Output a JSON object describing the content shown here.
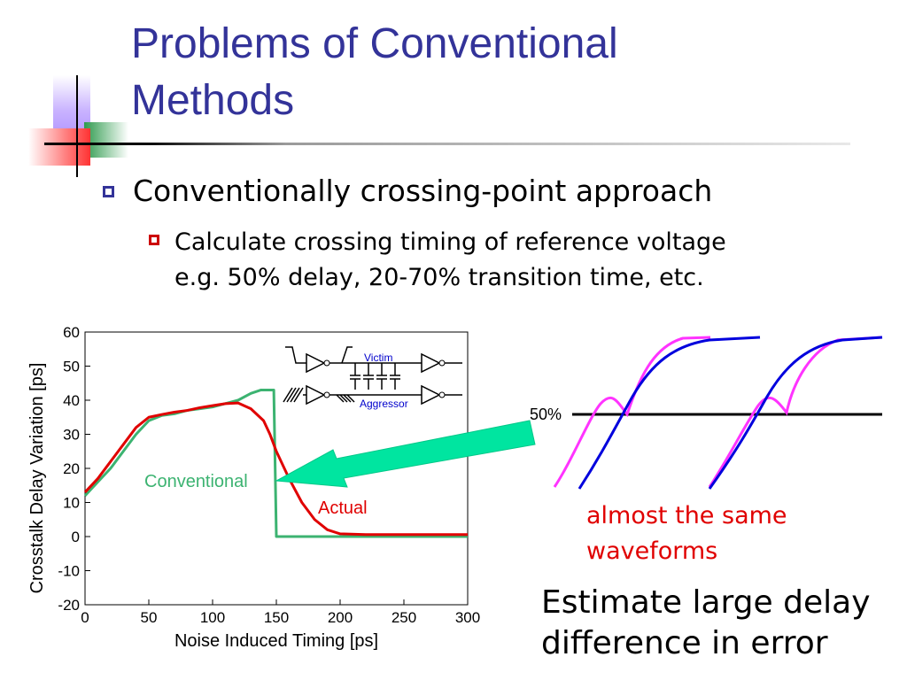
{
  "slide": {
    "title_line1": "Problems of Conventional",
    "title_line2": "Methods",
    "bullet": "Conventionally crossing-point approach",
    "sub_bullet_line1": "Calculate crossing timing of reference voltage",
    "sub_bullet_line2": "e.g. 50% delay, 20-70% transition time, etc."
  },
  "inset_circuit": {
    "victim_label": "Victim",
    "aggressor_label": "Aggressor"
  },
  "waveform_panel": {
    "reference_label": "50%",
    "note_line1": "almost the same",
    "note_line2": "waveforms"
  },
  "conclusion": {
    "line1": "Estimate large delay",
    "line2": "difference in error"
  },
  "colors": {
    "title": "#333399",
    "conventional": "#3cb371",
    "actual": "#e00000",
    "arrow": "#00e0a0",
    "magenta_wave": "#ff33ff",
    "blue_wave": "#0000dd"
  },
  "chart_data": {
    "type": "line",
    "xlabel": "Noise Induced Timing [ps]",
    "ylabel": "Crosstalk Delay Variation [ps]",
    "xlim": [
      0,
      300
    ],
    "ylim": [
      -20,
      60
    ],
    "xticks": [
      0,
      50,
      100,
      150,
      200,
      250,
      300
    ],
    "yticks": [
      60,
      50,
      40,
      30,
      20,
      10,
      0,
      -10,
      -20
    ],
    "series": [
      {
        "name": "Conventional",
        "color": "#3cb371",
        "x": [
          0,
          10,
          20,
          30,
          40,
          50,
          60,
          70,
          80,
          90,
          100,
          110,
          120,
          130,
          138,
          148,
          150,
          300
        ],
        "y": [
          12,
          16,
          20,
          25,
          30,
          34,
          35.5,
          36,
          37,
          37.5,
          38,
          39,
          40,
          42,
          43,
          43,
          0,
          0
        ]
      },
      {
        "name": "Actual",
        "color": "#e00000",
        "x": [
          0,
          10,
          20,
          30,
          40,
          50,
          60,
          70,
          80,
          90,
          100,
          110,
          120,
          130,
          140,
          145,
          150,
          160,
          170,
          180,
          190,
          200,
          220,
          300
        ],
        "y": [
          13,
          17,
          22,
          27,
          32,
          35,
          35.8,
          36.5,
          37,
          37.8,
          38.4,
          39,
          39.2,
          37.5,
          34,
          30,
          25,
          17,
          10,
          5,
          2,
          0.8,
          0.6,
          0.6
        ]
      }
    ]
  }
}
